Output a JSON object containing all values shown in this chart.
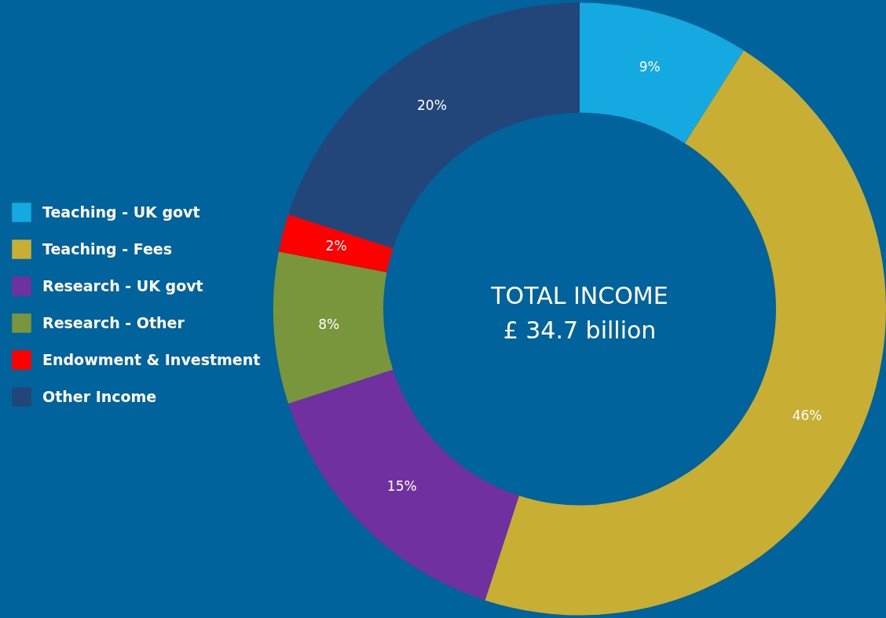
{
  "chart_data": {
    "type": "donut",
    "categories": [
      "Teaching - UK govt",
      "Teaching - Fees",
      "Research - UK govt",
      "Research - Other",
      "Endowment & Investment",
      "Other Income"
    ],
    "values": [
      9,
      46,
      15,
      8,
      2,
      20
    ],
    "value_labels": [
      "9%",
      "46%",
      "15%",
      "8%",
      "2%",
      "20%"
    ],
    "colors": [
      "#14a9e0",
      "#c8ae32",
      "#7030a0",
      "#7a963c",
      "#ff0000",
      "#22467a"
    ],
    "annotations": [
      "TOTAL INCOME",
      "£ 34.7 billion"
    ],
    "legend": "left"
  }
}
